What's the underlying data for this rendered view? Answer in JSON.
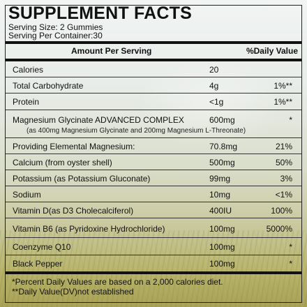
{
  "title": "SUPPLEMENT FACTS",
  "serving_size": "Serving Size: 2 Gummies",
  "servings_per_container": "Serving Per Container:30",
  "header": {
    "amount": "Amount Per Serving",
    "daily_value": "%Daily Value"
  },
  "rows": [
    {
      "name": "Calories",
      "amount": "20",
      "dv": ""
    },
    {
      "name": "Total Carbohydrate",
      "amount": "4g",
      "dv": "1%**"
    },
    {
      "name": "Protein",
      "amount": "<1g",
      "dv": "1%**"
    },
    {
      "name": "Magnesium Glycinate ADVANCED COMPLEX",
      "amount": "600mg",
      "dv": "*",
      "sub": "(as 400mg Magnesium Glycinate and 200mg Magnesium L-Threonate)"
    },
    {
      "name": "Providing Elemental Magnesium:",
      "amount": "70.8mg",
      "dv": "21%"
    },
    {
      "name": "Calcium (from oyster shell)",
      "amount": "500mg",
      "dv": "50%"
    },
    {
      "name": "Potassium (as Potassium Gluconate)",
      "amount": "99mg",
      "dv": "3%"
    },
    {
      "name": "Sodium",
      "amount": "10mg",
      "dv": "<1%"
    },
    {
      "name": "Vitamin D(as D3 Cholecalciferol)",
      "amount": "400IU",
      "dv": "100%"
    },
    {
      "name": "Vitamin B6 (as Pyridoxine Hydrochloride)",
      "amount": "100mg",
      "dv": "5000%"
    },
    {
      "name": "Coenzyme Q10",
      "amount": "100mg",
      "dv": "*"
    },
    {
      "name": "Black Pepper",
      "amount": "100mg",
      "dv": "*"
    }
  ],
  "footnotes": [
    "*Percent Daily Values are based on a 2,000 calories diet.",
    "**Daily Value(DV)not established"
  ]
}
